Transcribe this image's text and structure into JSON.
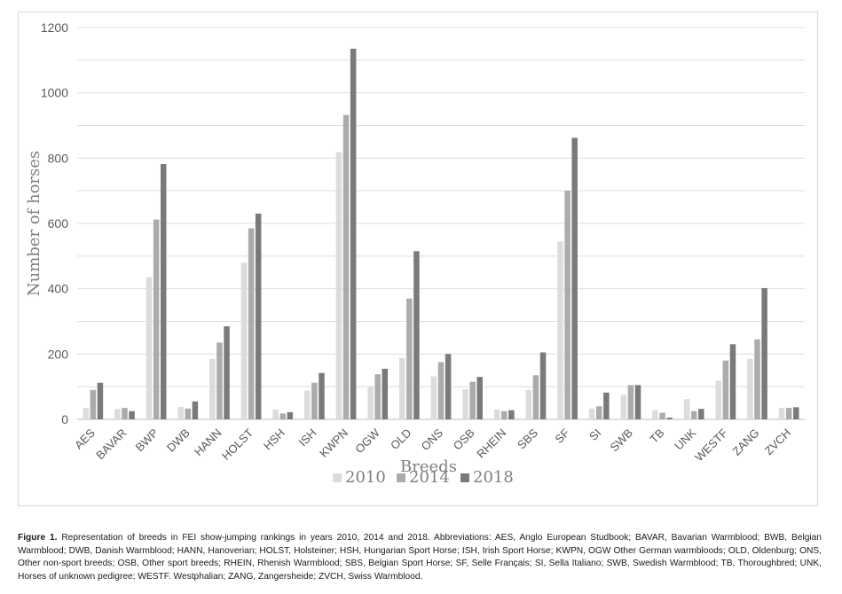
{
  "chart_data": {
    "type": "bar",
    "title": "",
    "xlabel": "Breeds",
    "ylabel": "Number of horses",
    "ylim": [
      0,
      1200
    ],
    "yticks": [
      0,
      200,
      400,
      600,
      800,
      1000,
      1200
    ],
    "grid": true,
    "legend_position": "bottom",
    "categories": [
      "AES",
      "BAVAR",
      "BWP",
      "DWB",
      "HANN",
      "HOLST",
      "HSH",
      "ISH",
      "KWPN",
      "OGW",
      "OLD",
      "ONS",
      "OSB",
      "RHEIN",
      "SBS",
      "SF",
      "SI",
      "SWB",
      "TB",
      "UNK",
      "WESTF",
      "ZANG",
      "ZVCH"
    ],
    "series": [
      {
        "name": "2010",
        "color": "#dcdcdc",
        "values": [
          35,
          32,
          435,
          38,
          185,
          480,
          30,
          88,
          818,
          102,
          188,
          132,
          92,
          30,
          90,
          545,
          33,
          75,
          28,
          62,
          118,
          185,
          35
        ]
      },
      {
        "name": "2014",
        "color": "#ababab",
        "values": [
          90,
          35,
          612,
          33,
          235,
          585,
          18,
          112,
          932,
          138,
          370,
          175,
          115,
          25,
          135,
          700,
          40,
          105,
          20,
          25,
          180,
          245,
          35
        ]
      },
      {
        "name": "2018",
        "color": "#7a7a7a",
        "values": [
          112,
          25,
          782,
          55,
          285,
          630,
          22,
          142,
          1135,
          155,
          515,
          200,
          130,
          28,
          205,
          862,
          82,
          105,
          5,
          32,
          230,
          402,
          37
        ]
      }
    ]
  },
  "caption": {
    "label": "Figure 1.",
    "text": "Representation of breeds in FEI show-jumping rankings in years 2010, 2014 and 2018. Abbreviations: AES, Anglo European Studbook; BAVAR, Bavarian Warmblood; BWB, Belgian Warmblood; DWB, Danish Warmblood; HANN, Hanoverian; HOLST, Holsteiner; HSH, Hungarian Sport Horse; ISH, Irish Sport Horse; KWPN, OGW Other German warmbloods; OLD, Oldenburg; ONS, Other non-sport breeds; OSB, Other sport breeds; RHEIN, Rhenish Warmblood; SBS, Belgian Sport Horse; SF, Selle Français; SI, Sella Italiano; SWB, Swedish Warmblood; TB, Thoroughbred; UNK, Horses of unknown pedigree; WESTF. Westphalian; ZANG, Zangersheide; ZVCH, Swiss Warmblood."
  }
}
